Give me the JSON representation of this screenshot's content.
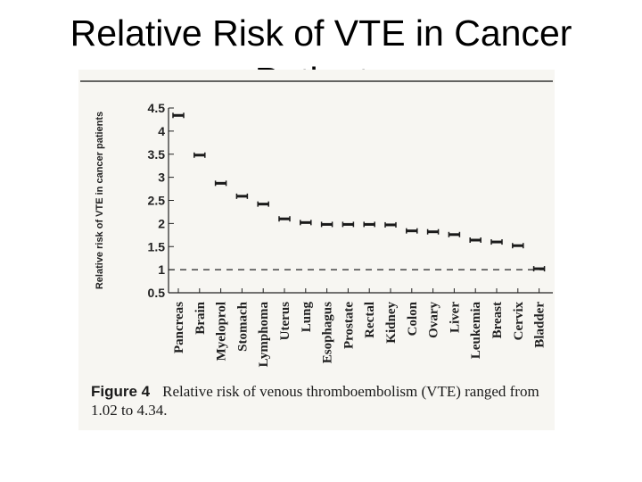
{
  "slide": {
    "title": "Relative Risk of VTE in Cancer",
    "title_overflow": "Patients"
  },
  "figure": {
    "label": "Figure 4",
    "caption": "Relative risk of venous thromboembolism (VTE) ranged from 1.02 to 4.34."
  },
  "chart_data": {
    "type": "scatter",
    "title": "",
    "xlabel": "",
    "ylabel": "Relative risk of VTE in cancer patients",
    "ylim": [
      0.5,
      4.5
    ],
    "yticks": [
      "4.5",
      "4",
      "3.5",
      "3",
      "2.5",
      "2",
      "1.5",
      "1",
      "0.5"
    ],
    "reference_line": 1,
    "grid": false,
    "categories": [
      "Pancreas",
      "Brain",
      "Myeloprol",
      "Stomach",
      "Lymphoma",
      "Uterus",
      "Lung",
      "Esophagus",
      "Prostate",
      "Rectal",
      "Kidney",
      "Colon",
      "Ovary",
      "Liver",
      "Leukemia",
      "Breast",
      "Cervix",
      "Bladder"
    ],
    "values": [
      4.34,
      3.48,
      2.87,
      2.59,
      2.42,
      2.1,
      2.02,
      1.98,
      1.98,
      1.98,
      1.97,
      1.84,
      1.82,
      1.76,
      1.64,
      1.6,
      1.52,
      1.02
    ],
    "colors": {
      "marker": "#1a1a1a",
      "panel": "#f7f6f2"
    }
  }
}
